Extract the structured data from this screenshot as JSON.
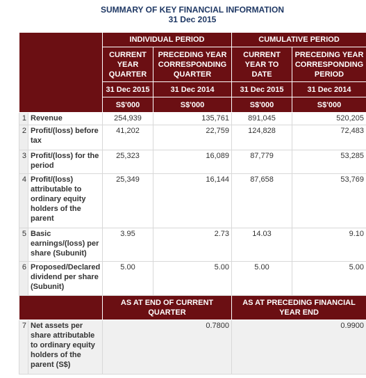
{
  "header": {
    "title": "SUMMARY OF KEY FINANCIAL INFORMATION",
    "date": "31 Dec 2015"
  },
  "table": {
    "groups": [
      "INDIVIDUAL PERIOD",
      "CUMULATIVE PERIOD"
    ],
    "columns": [
      "CURRENT YEAR QUARTER",
      "PRECEDING YEAR CORRESPONDING QUARTER",
      "CURRENT YEAR TO DATE",
      "PRECEDING YEAR CORRESPONDING PERIOD"
    ],
    "dates": [
      "31 Dec 2015",
      "31 Dec 2014",
      "31 Dec 2015",
      "31 Dec 2014"
    ],
    "units": [
      "S$'000",
      "S$'000",
      "S$'000",
      "S$'000"
    ],
    "rows": [
      {
        "no": "1",
        "label": "Revenue",
        "values": [
          "254,939",
          "135,761",
          "891,045",
          "520,205"
        ]
      },
      {
        "no": "2",
        "label": "Profit/(loss) before tax",
        "values": [
          "41,202",
          "22,759",
          "124,828",
          "72,483"
        ]
      },
      {
        "no": "3",
        "label": "Profit/(loss) for the period",
        "values": [
          "25,323",
          "16,089",
          "87,779",
          "53,285"
        ]
      },
      {
        "no": "4",
        "label": "Profit/(loss) attributable to ordinary equity holders of the parent",
        "values": [
          "25,349",
          "16,144",
          "87,658",
          "53,769"
        ]
      },
      {
        "no": "5",
        "label": "Basic earnings/(loss) per share (Subunit)",
        "values": [
          "3.95",
          "2.73",
          "14.03",
          "9.10"
        ]
      },
      {
        "no": "6",
        "label": "Proposed/Declared dividend per share (Subunit)",
        "values": [
          "5.00",
          "5.00",
          "5.00",
          "5.00"
        ]
      }
    ],
    "section2": {
      "headers": [
        "AS AT END OF CURRENT QUARTER",
        "AS AT PRECEDING FINANCIAL YEAR END"
      ],
      "row": {
        "no": "7",
        "label": "Net assets per share attributable to ordinary equity holders of the parent (S$)",
        "values": [
          "0.7800",
          "0.9900"
        ]
      }
    }
  }
}
